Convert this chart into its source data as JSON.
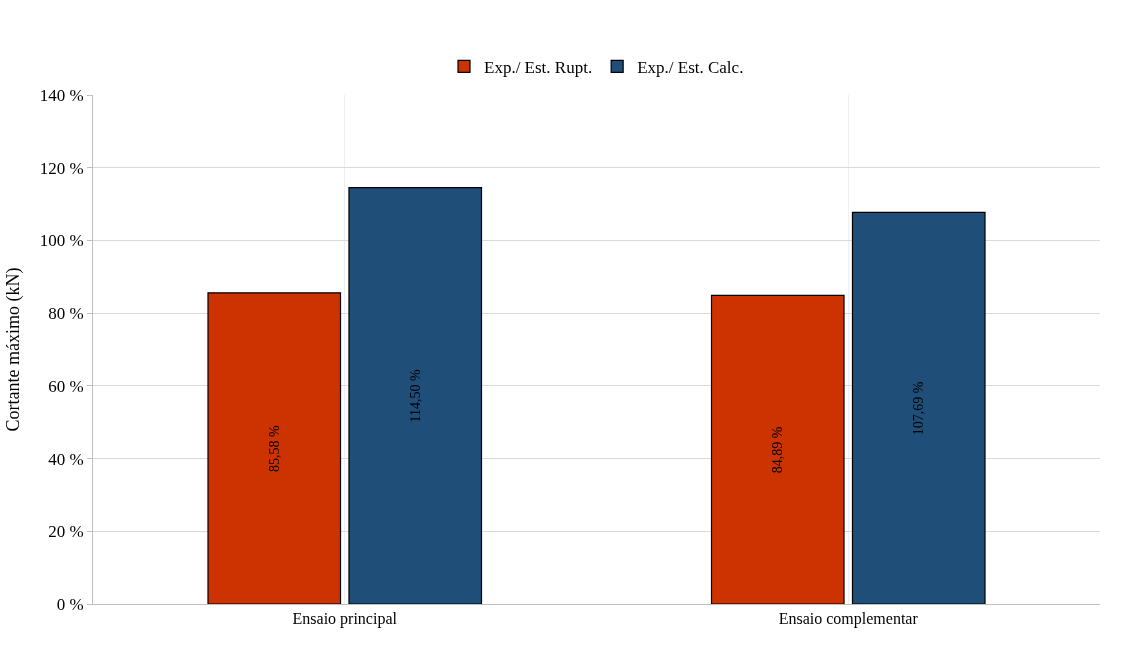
{
  "chart_data": {
    "type": "bar",
    "ylabel": "Cortante máximo (kN)",
    "categories": [
      "Ensaio principal",
      "Ensaio complementar"
    ],
    "series": [
      {
        "name": "Exp./ Est. Rupt.",
        "color": "#cc3300",
        "values": [
          85.58,
          84.89
        ],
        "value_labels": [
          "85,58 %",
          "84,89 %"
        ]
      },
      {
        "name": "Exp./ Est. Calc.",
        "color": "#1f4e79",
        "values": [
          114.5,
          107.69
        ],
        "value_labels": [
          "114,50 %",
          "107,69 %"
        ]
      }
    ],
    "ylim": [
      0,
      140
    ],
    "yticks": [
      {
        "value": 0,
        "label": "0 %"
      },
      {
        "value": 20,
        "label": "20 %"
      },
      {
        "value": 40,
        "label": "40 %"
      },
      {
        "value": 60,
        "label": "60 %"
      },
      {
        "value": 80,
        "label": "80 %"
      },
      {
        "value": 100,
        "label": "100 %"
      },
      {
        "value": 120,
        "label": "120 %"
      },
      {
        "value": 140,
        "label": "140 %"
      }
    ],
    "grid": true,
    "legend": "top"
  }
}
